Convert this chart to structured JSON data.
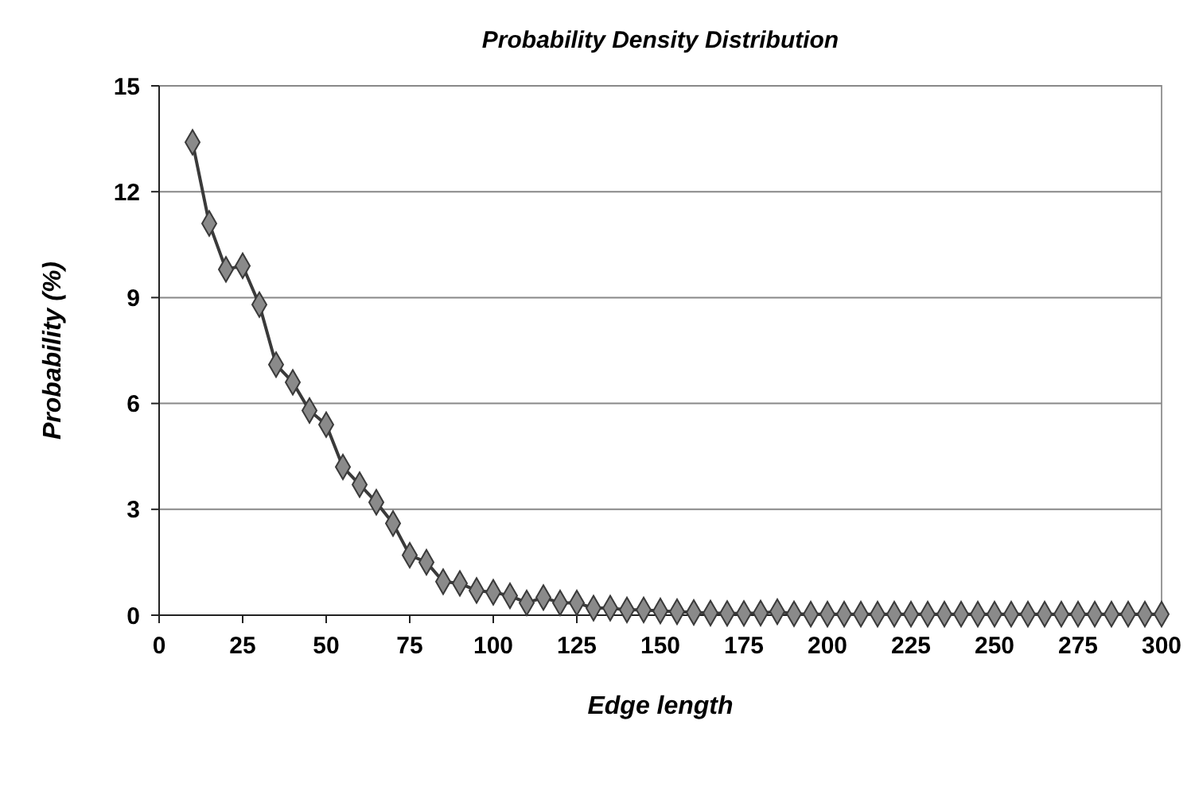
{
  "chart_data": {
    "type": "line",
    "title": "Probability Density Distribution",
    "xlabel": "Edge length",
    "ylabel": "Probability (%)",
    "x": [
      10,
      15,
      20,
      25,
      30,
      35,
      40,
      45,
      50,
      55,
      60,
      65,
      70,
      75,
      80,
      85,
      90,
      95,
      100,
      105,
      110,
      115,
      120,
      125,
      130,
      135,
      140,
      145,
      150,
      155,
      160,
      165,
      170,
      175,
      180,
      185,
      190,
      195,
      200,
      205,
      210,
      215,
      220,
      225,
      230,
      235,
      240,
      245,
      250,
      255,
      260,
      265,
      270,
      275,
      280,
      285,
      290,
      295,
      300
    ],
    "series": [
      {
        "color": "#3a3a3a",
        "values": [
          13.4,
          11.1,
          9.8,
          9.9,
          8.8,
          7.1,
          6.6,
          5.8,
          5.4,
          4.2,
          3.7,
          3.2,
          2.6,
          1.7,
          1.5,
          0.95,
          0.9,
          0.7,
          0.65,
          0.55,
          0.35,
          0.5,
          0.35,
          0.35,
          0.2,
          0.2,
          0.15,
          0.15,
          0.12,
          0.1,
          0.08,
          0.06,
          0.05,
          0.05,
          0.06,
          0.1,
          0.04,
          0.03,
          0.03,
          0.03,
          0.03,
          0.03,
          0.03,
          0.03,
          0.03,
          0.03,
          0.03,
          0.03,
          0.03,
          0.03,
          0.03,
          0.03,
          0.03,
          0.03,
          0.03,
          0.03,
          0.03,
          0.03,
          0.03
        ]
      }
    ],
    "xlim": [
      0,
      300
    ],
    "xticks": [
      0,
      25,
      50,
      75,
      100,
      125,
      150,
      175,
      200,
      225,
      250,
      275,
      300
    ],
    "ylim": [
      0,
      15
    ],
    "yticks": [
      0,
      3,
      6,
      9,
      12,
      15
    ],
    "grid": "y",
    "marker": "diamond",
    "line_style": "solid"
  }
}
